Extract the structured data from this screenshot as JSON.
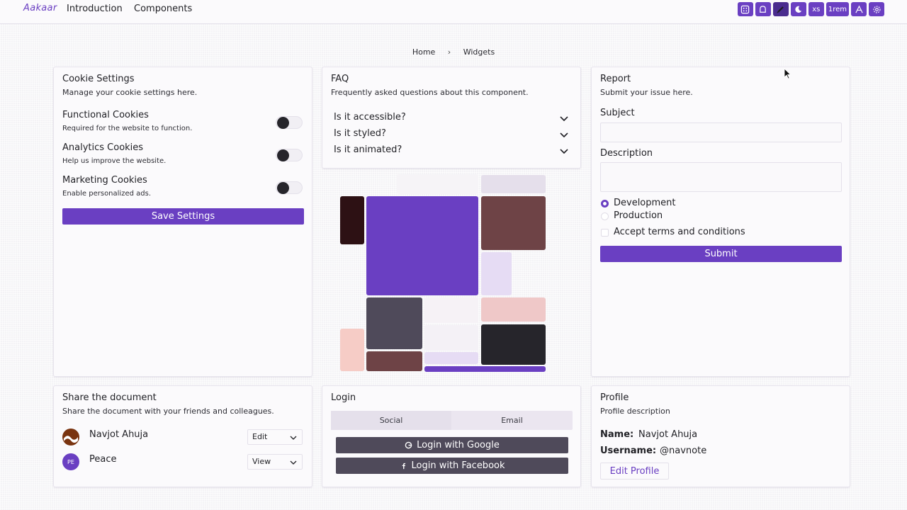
{
  "header": {
    "logo": "Aakaar",
    "nav": [
      "Introduction",
      "Components"
    ],
    "tools": [
      {
        "icon": "dice-icon",
        "label": ""
      },
      {
        "icon": "shape-icon",
        "label": ""
      },
      {
        "icon": "brush-icon",
        "label": ""
      },
      {
        "icon": "moon-icon",
        "label": ""
      },
      {
        "icon": "size-text",
        "label": "xs"
      },
      {
        "icon": "spacing-text",
        "label": "1rem"
      },
      {
        "icon": "font-icon",
        "label": ""
      },
      {
        "icon": "settings-icon",
        "label": ""
      }
    ]
  },
  "breadcrumb": {
    "home": "Home",
    "current": "Widgets"
  },
  "cookie": {
    "title": "Cookie Settings",
    "subtitle": "Manage your cookie settings here.",
    "items": [
      {
        "title": "Functional Cookies",
        "desc": "Required for the website to function."
      },
      {
        "title": "Analytics Cookies",
        "desc": "Help us improve the website."
      },
      {
        "title": "Marketing Cookies",
        "desc": "Enable personalized ads."
      }
    ],
    "save_label": "Save Settings"
  },
  "faq": {
    "title": "FAQ",
    "subtitle": "Frequently asked questions about this component.",
    "questions": [
      "Is it accessible?",
      "Is it styled?",
      "Is it animated?"
    ]
  },
  "report": {
    "title": "Report",
    "subtitle": "Submit your issue here.",
    "subject_label": "Subject",
    "subject_value": "",
    "description_label": "Description",
    "description_value": "",
    "env_options": [
      "Development",
      "Production"
    ],
    "env_selected": "Development",
    "terms_label": "Accept terms and conditions",
    "submit_label": "Submit"
  },
  "share": {
    "title": "Share the document",
    "subtitle": "Share the document with your friends and colleagues.",
    "people": [
      {
        "name": "Navjot Ahuja",
        "initials": "",
        "permission": "Edit"
      },
      {
        "name": "Peace",
        "initials": "PE",
        "permission": "View"
      }
    ]
  },
  "login": {
    "title": "Login",
    "tabs": [
      "Social",
      "Email"
    ],
    "active_tab": "Social",
    "google_label": "Login with Google",
    "facebook_label": "Login with Facebook"
  },
  "profile": {
    "title": "Profile",
    "subtitle": "Profile description",
    "name_label": "Name:",
    "name_value": "Navjot Ahuja",
    "username_label": "Username:",
    "username_value": "@navnote",
    "edit_label": "Edit Profile"
  },
  "colors": {
    "accent": "#6a3fc2",
    "dark_button": "#4f4a5a",
    "toggle_knob": "#26252b"
  }
}
